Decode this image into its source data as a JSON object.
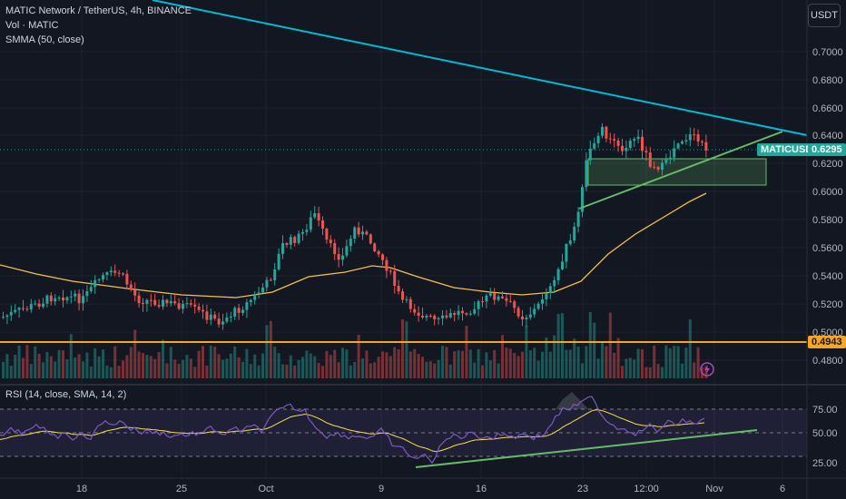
{
  "header": {
    "title": "MATIC Network / TetherUS, 4h, BINANCE",
    "vol_label": "Vol · MATIC",
    "smma_label": "SMMA (50, close)",
    "currency_button": "USDT"
  },
  "rsi": {
    "label": "RSI (14, close, SMA, 14, 2)",
    "ticks": [
      "75.00",
      "50.00",
      "25.00"
    ]
  },
  "price_axis": {
    "ticks": [
      "0.7000",
      "0.6800",
      "0.6600",
      "0.6400",
      "0.6200",
      "0.6000",
      "0.5800",
      "0.5600",
      "0.5400",
      "0.5200",
      "0.5000",
      "0.4800"
    ]
  },
  "time_axis": {
    "labels": [
      "18",
      "25",
      "Oct",
      "9",
      "16",
      "23",
      "12:00",
      "Nov",
      "6"
    ]
  },
  "tags": {
    "symbol": "MATICUSDT",
    "last_price": "0.6295",
    "support_price": "0.4943"
  },
  "colors": {
    "background": "#131722",
    "up": "#26a69a",
    "down": "#ef5350",
    "trendline_top": "#00bcd4",
    "trendline_green": "#66bb6a",
    "smma": "#f5c04a",
    "support_line": "#f5a623",
    "rsi_line": "#7e57c2",
    "rsi_ma": "#f5e14a"
  }
}
